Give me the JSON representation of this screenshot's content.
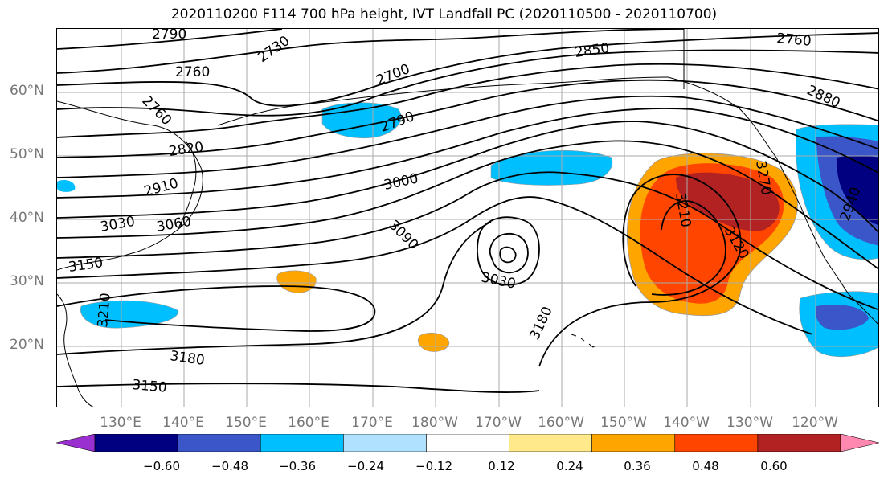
{
  "title": "2020110200 F114 700 hPa height, IVT Landfall PC (2020110500 - 2020110700)",
  "lat_labels": [
    "60°N",
    "50°N",
    "40°N",
    "30°N",
    "20°N"
  ],
  "lon_labels": [
    "130°E",
    "140°E",
    "150°E",
    "160°E",
    "170°E",
    "180°W",
    "170°W",
    "160°W",
    "150°W",
    "140°W",
    "130°W",
    "120°W"
  ],
  "contour_labels": [
    "2790",
    "2730",
    "2760",
    "2700",
    "2850",
    "2760",
    "2760",
    "2880",
    "2790",
    "2820",
    "2910",
    "3000",
    "3030",
    "3060",
    "3150",
    "3090",
    "3030",
    "3210",
    "3120",
    "3180",
    "3210",
    "3180",
    "3150",
    "3270",
    "2940"
  ],
  "colorbar": {
    "ticks": [
      "−0.60",
      "−0.48",
      "−0.36",
      "−0.24",
      "−0.12",
      "0.12",
      "0.24",
      "0.36",
      "0.48",
      "0.60"
    ],
    "colors": [
      "#9b30d0",
      "#000080",
      "#3a56c8",
      "#00bfff",
      "#b0e2ff",
      "#ffffff",
      "#ffe98a",
      "#ffa500",
      "#ff4500",
      "#b22222",
      "#ff88b0"
    ]
  }
}
